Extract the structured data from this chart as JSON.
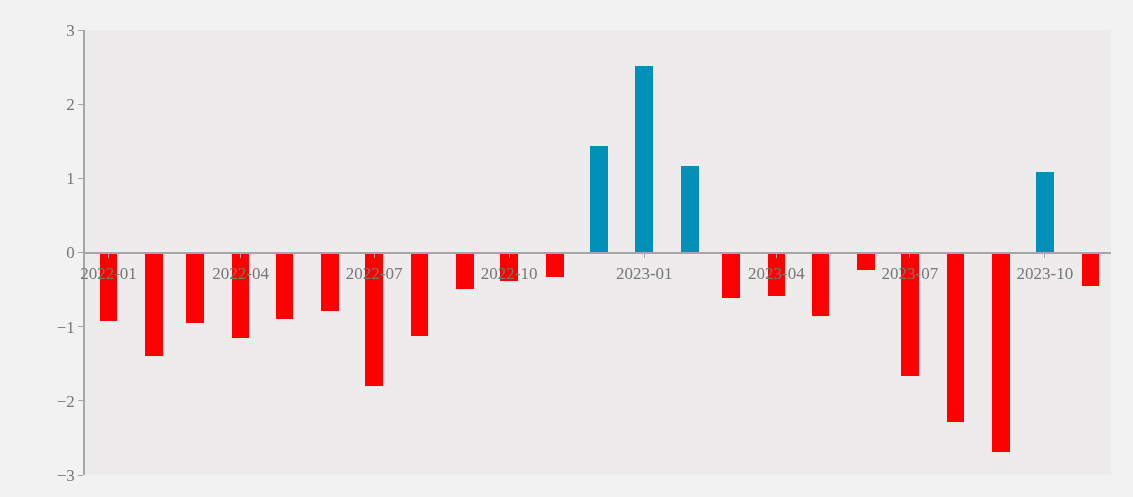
{
  "chart_data": {
    "type": "bar",
    "x": [
      "2022-01",
      "2022-02",
      "2022-03",
      "2022-04",
      "2022-05",
      "2022-06",
      "2022-07",
      "2022-08",
      "2022-09",
      "2022-10",
      "2022-11",
      "2022-12",
      "2023-01",
      "2023-02",
      "2023-03",
      "2023-04",
      "2023-05",
      "2023-06",
      "2023-07",
      "2023-08",
      "2023-09",
      "2023-10",
      "2023-11"
    ],
    "values": [
      -0.92,
      -1.4,
      -0.95,
      -1.15,
      -0.89,
      -0.79,
      -1.8,
      -1.13,
      -0.49,
      -0.39,
      -0.33,
      1.43,
      2.51,
      1.17,
      -0.61,
      -0.59,
      -0.85,
      -0.24,
      -1.67,
      -2.28,
      -2.69,
      1.08,
      -0.45
    ],
    "colors": [
      "#ff0000",
      "#ff0000",
      "#ff0000",
      "#ff0000",
      "#ff0000",
      "#ff0000",
      "#ff0000",
      "#ff0000",
      "#ff0000",
      "#ff0000",
      "#ff0000",
      "#0090b8",
      "#0090b8",
      "#0090b8",
      "#ff0000",
      "#ff0000",
      "#ff0000",
      "#ff0000",
      "#ff0000",
      "#ff0000",
      "#ff0000",
      "#0090b8",
      "#ff0000"
    ],
    "xlim": [
      "2021-12-16",
      "2023-11-15"
    ],
    "xticks": [
      "2022-01",
      "2022-04",
      "2022-07",
      "2022-10",
      "2023-01",
      "2023-04",
      "2023-07",
      "2023-10"
    ],
    "ylim": [
      -3,
      3
    ],
    "yticks": [
      -3,
      -2,
      -1,
      0,
      1,
      2,
      3
    ],
    "grid": false
  }
}
